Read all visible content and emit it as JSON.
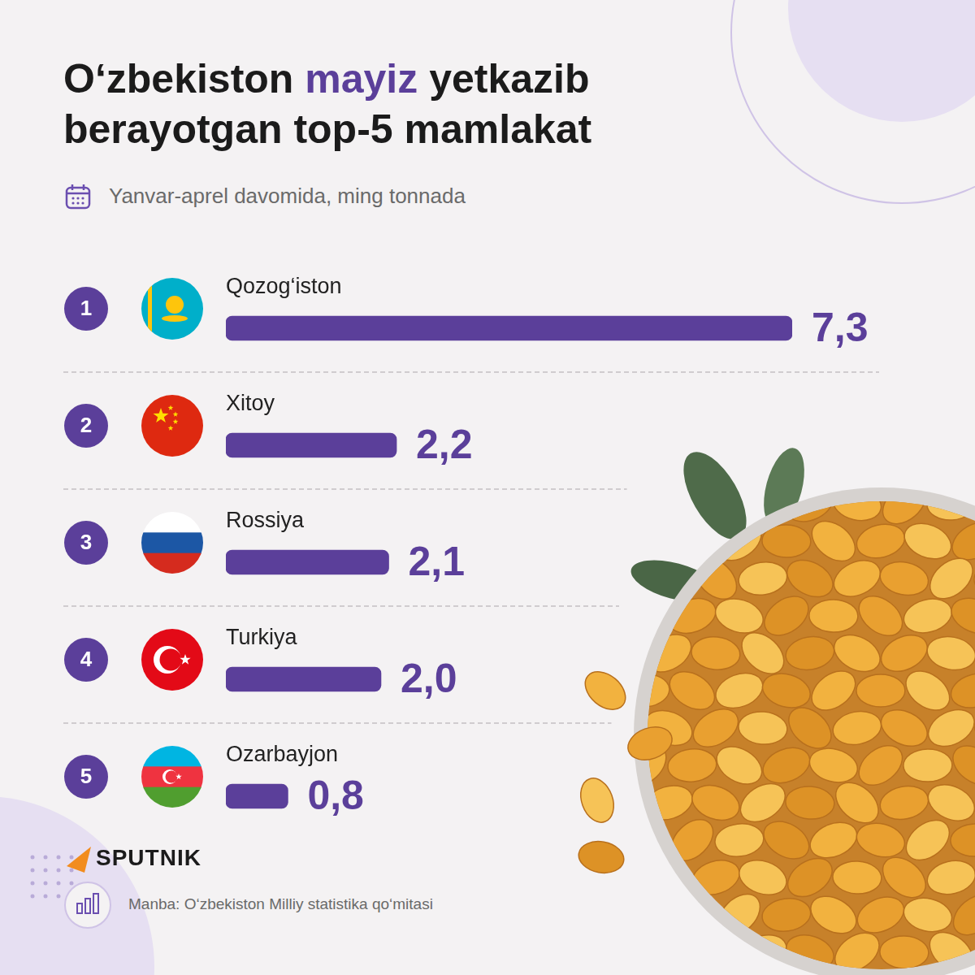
{
  "chart_data": {
    "type": "bar",
    "orientation": "horizontal",
    "title": "O‘zbekiston mayiz yetkazib berayotgan top-5 mamlakat",
    "subtitle": "Yanvar-aprel davomida, ming tonnada",
    "categories": [
      "Qozog‘iston",
      "Xitoy",
      "Rossiya",
      "Turkiya",
      "Ozarbayjon"
    ],
    "ranks": [
      1,
      2,
      3,
      4,
      5
    ],
    "values": [
      7.3,
      2.2,
      2.1,
      2.0,
      0.8
    ],
    "value_labels": [
      "7,3",
      "2,2",
      "2,1",
      "2,0",
      "0,8"
    ],
    "color": "#5b3f9a",
    "xlim": [
      0,
      7.3
    ],
    "data_labels": true,
    "tick_labels": false,
    "grid": false
  },
  "source": "Manba: O‘zbekiston Milliy statistika qo‘mitasi",
  "brand": "SPUTNIK"
}
